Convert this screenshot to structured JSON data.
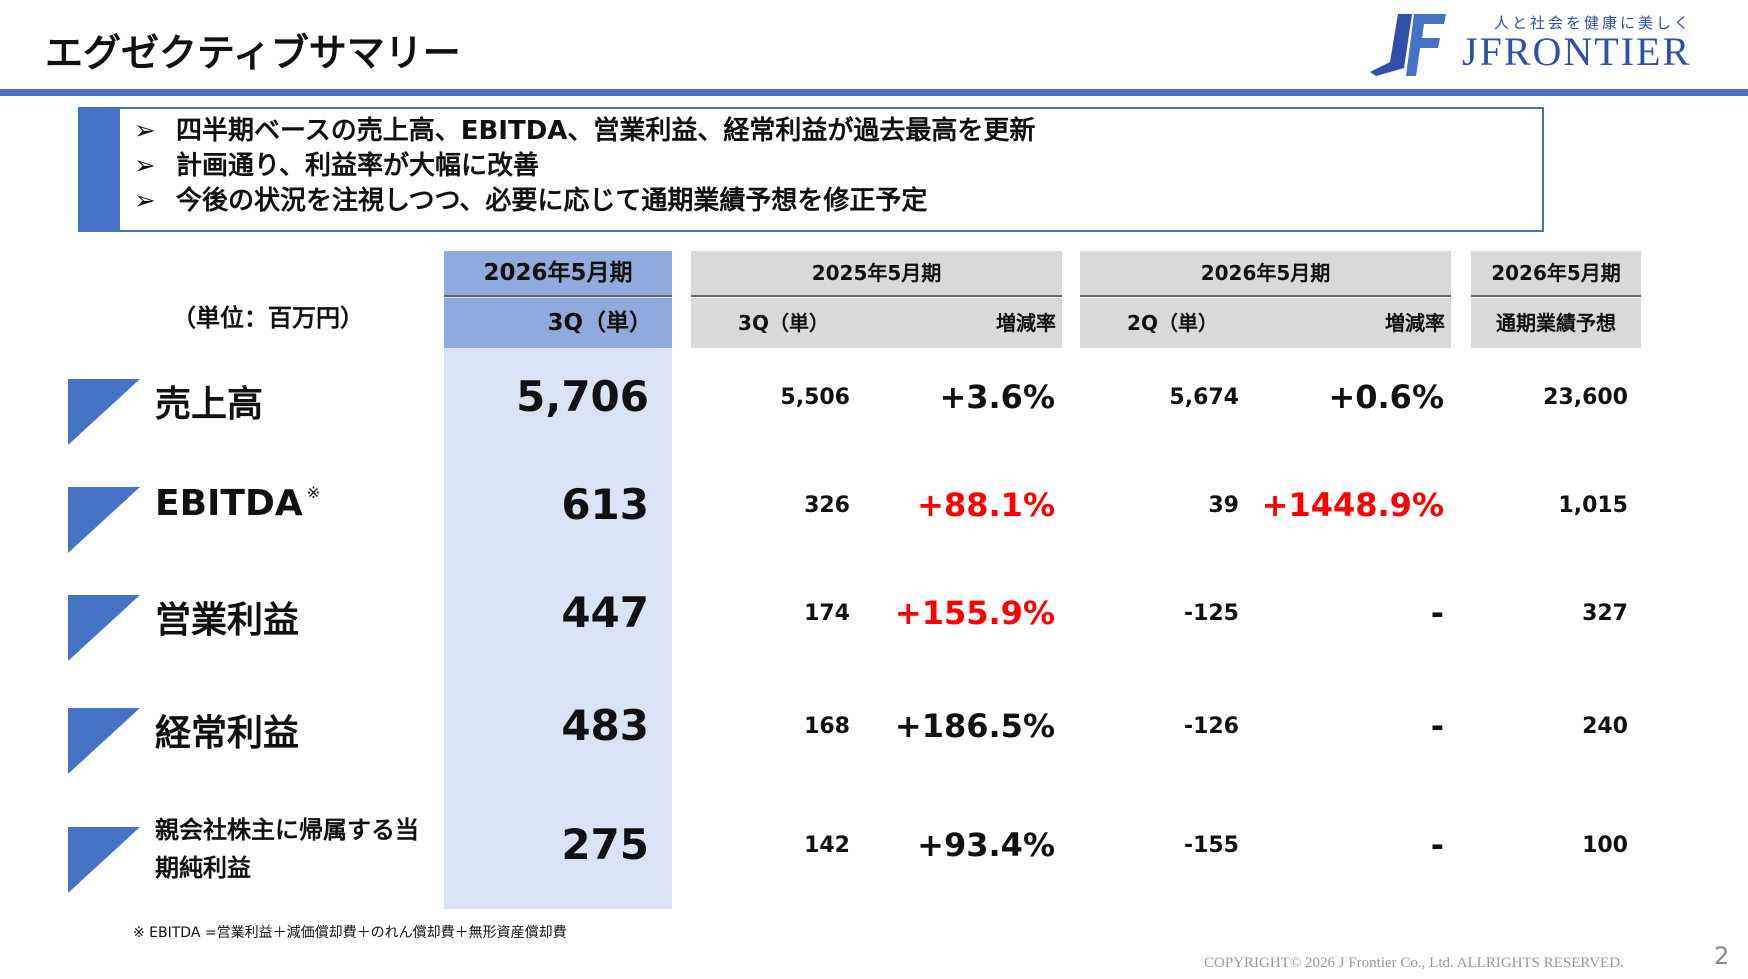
{
  "header": {
    "title": "エグゼクティブサマリー"
  },
  "logo": {
    "tagline": "人と社会を健康に美しく",
    "name": "JFRONTIER"
  },
  "bullets": [
    "四半期ベースの売上高、EBITDA、営業利益、経常利益が過去最高を更新",
    "計画通り、利益率が大幅に改善",
    "今後の状況を注視しつつ、必要に応じて通期業績予想を修正予定"
  ],
  "table": {
    "unit": "（単位：百万円）",
    "column_groups": [
      "2026年5月期",
      "2025年5月期",
      "2026年5月期",
      "2026年5月期"
    ],
    "columns": [
      "3Q（単）",
      "3Q（単）",
      "増減率",
      "2Q（単）",
      "増減率",
      "通期業績予想"
    ],
    "emphasis_color": "#ff0000",
    "rows": [
      {
        "label": "売上高",
        "values": [
          "5,706",
          "5,506",
          "+3.6%",
          "5,674",
          "+0.6%",
          "23,600"
        ],
        "emphasized": []
      },
      {
        "label": "EBITDA",
        "note_mark": "※",
        "values": [
          "613",
          "326",
          "+88.1%",
          "39",
          "+1448.9%",
          "1,015"
        ],
        "emphasized": [
          2,
          4
        ]
      },
      {
        "label": "営業利益",
        "values": [
          "447",
          "174",
          "+155.9%",
          "-125",
          "-",
          "327"
        ],
        "emphasized": [
          2
        ]
      },
      {
        "label": "経常利益",
        "values": [
          "483",
          "168",
          "+186.5%",
          "-126",
          "-",
          "240"
        ],
        "emphasized": []
      },
      {
        "label": "親会社株主に帰属する当期純利益",
        "values": [
          "275",
          "142",
          "+93.4%",
          "-155",
          "-",
          "100"
        ],
        "emphasized": []
      }
    ]
  },
  "footnote": "※ EBITDA =営業利益＋減価償却費＋のれん償却費＋無形資産償却費",
  "copyright": "COPYRIGHT© 2026 J Frontier Co., Ltd. ALLRIGHTS RESERVED.",
  "page_number": "2"
}
